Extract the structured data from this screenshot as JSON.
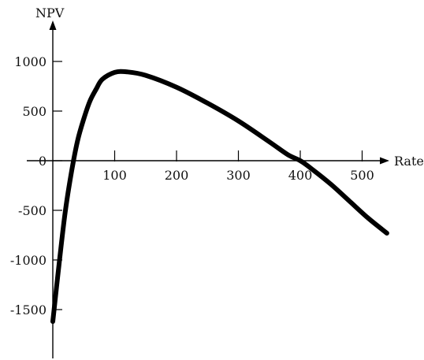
{
  "chart_data": {
    "type": "line",
    "title": "",
    "xlabel": "Rate",
    "ylabel": "NPV",
    "xlim": [
      -10,
      540
    ],
    "ylim": [
      -1950,
      1420
    ],
    "x_ticks": [
      100,
      200,
      300,
      400,
      500
    ],
    "x_tick_labels": [
      "100",
      "200",
      "300",
      "400",
      "500"
    ],
    "y_ticks": [
      1000,
      500,
      0,
      -500,
      -1000,
      -1500
    ],
    "y_tick_labels": [
      "1000",
      "500",
      "0",
      "-500",
      "-1000",
      "-1500"
    ],
    "grid": false,
    "legend": "none",
    "series": [
      {
        "values_x": [
          0,
          10,
          20,
          30,
          40,
          50,
          60,
          70,
          80,
          100,
          120,
          150,
          200,
          250,
          300,
          350,
          380,
          400,
          420,
          450,
          480,
          510,
          540
        ],
        "values_y": [
          -1620,
          -1050,
          -520,
          -120,
          200,
          420,
          600,
          720,
          820,
          890,
          895,
          860,
          740,
          580,
          400,
          190,
          60,
          0,
          -90,
          -240,
          -410,
          -580,
          -730
        ]
      }
    ],
    "style": {
      "line_color": "#000000",
      "axis_color": "#000000",
      "text_color": "#111111"
    }
  }
}
